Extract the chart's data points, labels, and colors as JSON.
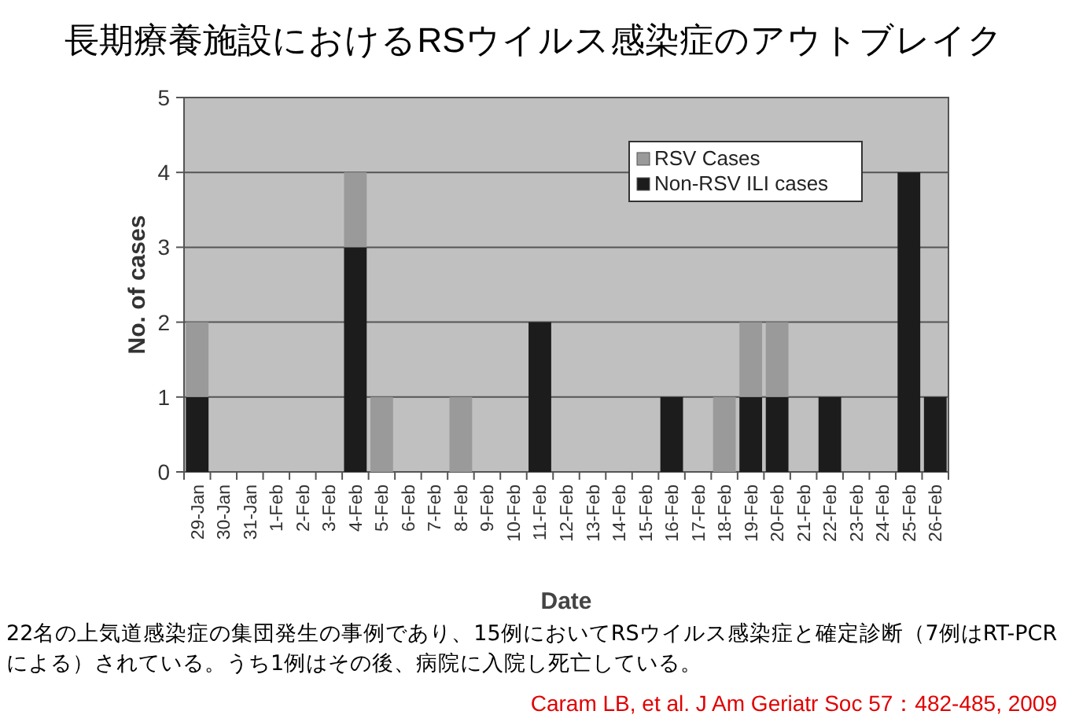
{
  "chart_data": {
    "type": "bar",
    "title": "長期療養施設におけるRSウイルス感染症のアウトブレイク",
    "xlabel": "Date",
    "ylabel": "No. of cases",
    "categories": [
      "29-Jan",
      "30-Jan",
      "31-Jan",
      "1-Feb",
      "2-Feb",
      "3-Feb",
      "4-Feb",
      "5-Feb",
      "6-Feb",
      "7-Feb",
      "8-Feb",
      "9-Feb",
      "10-Feb",
      "11-Feb",
      "12-Feb",
      "13-Feb",
      "14-Feb",
      "15-Feb",
      "16-Feb",
      "17-Feb",
      "18-Feb",
      "19-Feb",
      "20-Feb",
      "21-Feb",
      "22-Feb",
      "23-Feb",
      "24-Feb",
      "25-Feb",
      "26-Feb"
    ],
    "series": [
      {
        "name": "Non-RSV ILI cases",
        "color": "#1c1c1c",
        "values": [
          1,
          0,
          0,
          0,
          0,
          0,
          3,
          0,
          0,
          0,
          0,
          0,
          0,
          2,
          0,
          0,
          0,
          0,
          1,
          0,
          0,
          1,
          1,
          0,
          1,
          0,
          0,
          4,
          1
        ]
      },
      {
        "name": "RSV Cases",
        "color": "#9a9a9a",
        "values": [
          1,
          0,
          0,
          0,
          0,
          0,
          1,
          1,
          0,
          0,
          1,
          0,
          0,
          0,
          0,
          0,
          0,
          0,
          0,
          0,
          1,
          1,
          1,
          0,
          0,
          0,
          0,
          0,
          0
        ]
      }
    ],
    "stacked": true,
    "ylim": [
      0,
      5
    ],
    "yticks": [
      0,
      1,
      2,
      3,
      4,
      5
    ],
    "grid": "y",
    "legend": "top right",
    "annotations": [
      "22名の上気道感染症の集団発生の事例であり、15例においてRSウイルス感染症と確定診断（7例はRT-PCRによる）されている。うち1例はその後、病院に入院し死亡している。",
      "Caram LB, et al. J Am Geriatr Soc 57：482-485, 2009"
    ]
  }
}
